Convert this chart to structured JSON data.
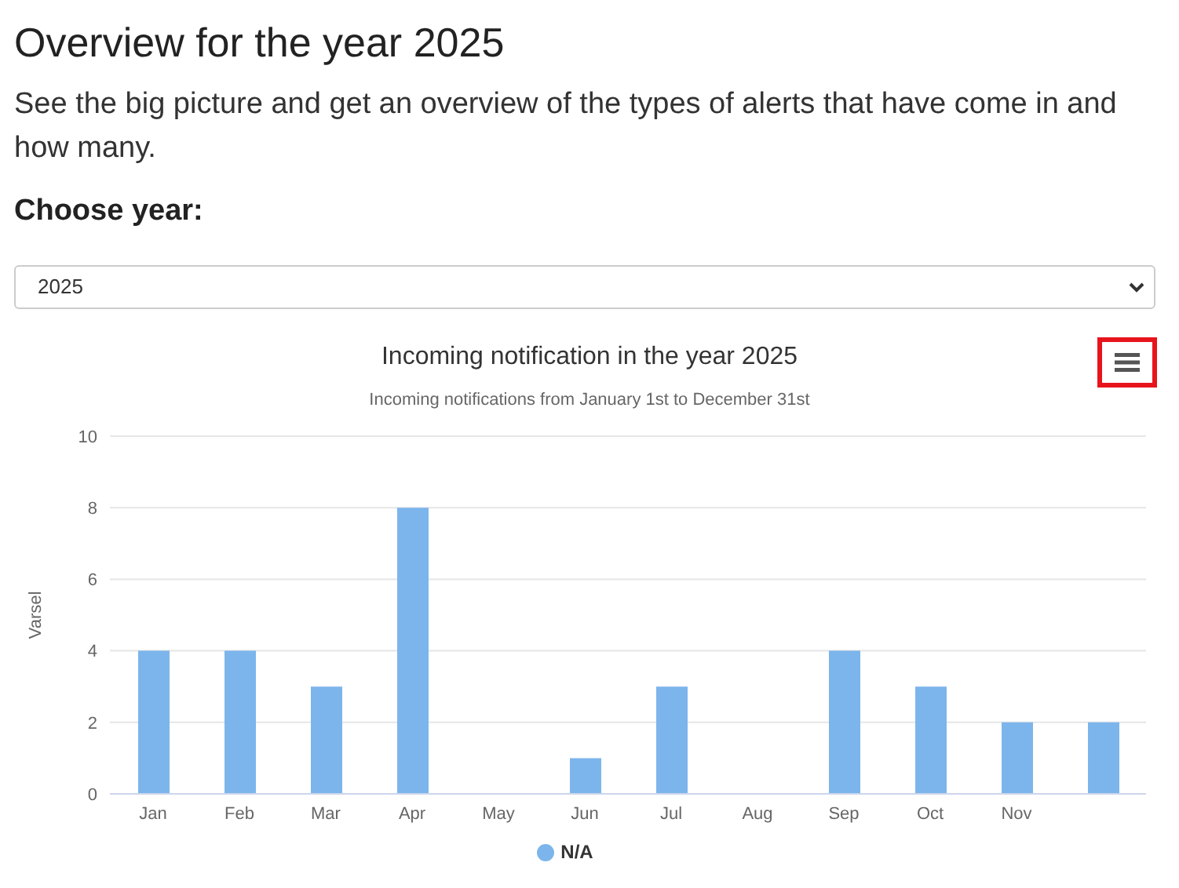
{
  "chart_data": {
    "type": "bar",
    "title": "Incoming notification in the year 2025",
    "subtitle": "Incoming notifications from January 1st to December 31st",
    "ylabel": "Varsel",
    "annotations": [
      "Overview for the year 2025",
      "See the big picture and get an overview of the types of alerts that have come in and how many.",
      "Choose year:",
      "2025"
    ],
    "categories": [
      "Jan",
      "Feb",
      "Mar",
      "Apr",
      "May",
      "Jun",
      "Jul",
      "Aug",
      "Sep",
      "Oct",
      "Nov",
      null
    ],
    "series": [
      {
        "name": "N/A",
        "color": "#7cb5ec",
        "values": [
          4,
          4,
          3,
          8,
          0,
          1,
          3,
          0,
          4,
          3,
          2,
          2
        ]
      }
    ],
    "ylim": [
      0,
      10
    ],
    "yticks": [
      0,
      2,
      4,
      6,
      8,
      10
    ],
    "grid": "y",
    "legend": "bottom"
  }
}
